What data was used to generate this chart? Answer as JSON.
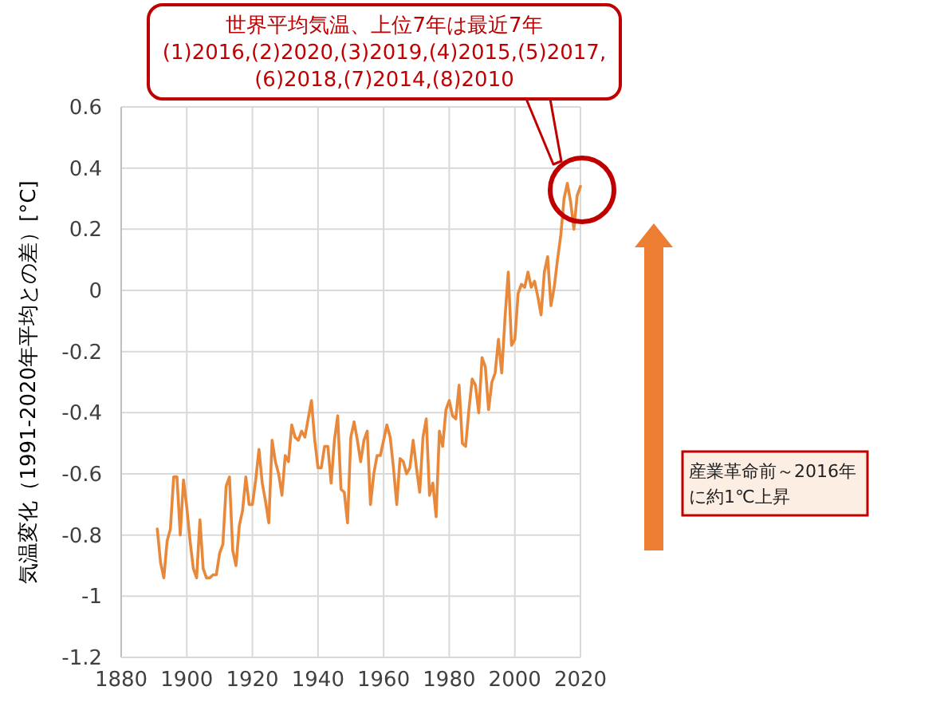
{
  "chart_data": {
    "type": "line",
    "ylabel": "気温変化（1991-2020年平均との差）[°C]",
    "x": [
      1891,
      1892,
      1893,
      1894,
      1895,
      1896,
      1897,
      1898,
      1899,
      1900,
      1901,
      1902,
      1903,
      1904,
      1905,
      1906,
      1907,
      1908,
      1909,
      1910,
      1911,
      1912,
      1913,
      1914,
      1915,
      1916,
      1917,
      1918,
      1919,
      1920,
      1921,
      1922,
      1923,
      1924,
      1925,
      1926,
      1927,
      1928,
      1929,
      1930,
      1931,
      1932,
      1933,
      1934,
      1935,
      1936,
      1937,
      1938,
      1939,
      1940,
      1941,
      1942,
      1943,
      1944,
      1945,
      1946,
      1947,
      1948,
      1949,
      1950,
      1951,
      1952,
      1953,
      1954,
      1955,
      1956,
      1957,
      1958,
      1959,
      1960,
      1961,
      1962,
      1963,
      1964,
      1965,
      1966,
      1967,
      1968,
      1969,
      1970,
      1971,
      1972,
      1973,
      1974,
      1975,
      1976,
      1977,
      1978,
      1979,
      1980,
      1981,
      1982,
      1983,
      1984,
      1985,
      1986,
      1987,
      1988,
      1989,
      1990,
      1991,
      1992,
      1993,
      1994,
      1995,
      1996,
      1997,
      1998,
      1999,
      2000,
      2001,
      2002,
      2003,
      2004,
      2005,
      2006,
      2007,
      2008,
      2009,
      2010,
      2011,
      2012,
      2013,
      2014,
      2015,
      2016,
      2017,
      2018,
      2019,
      2020
    ],
    "series": [
      {
        "color": "#e8883a",
        "values": [
          -0.78,
          -0.89,
          -0.94,
          -0.82,
          -0.78,
          -0.61,
          -0.61,
          -0.8,
          -0.62,
          -0.71,
          -0.82,
          -0.91,
          -0.94,
          -0.75,
          -0.91,
          -0.94,
          -0.94,
          -0.93,
          -0.93,
          -0.86,
          -0.83,
          -0.64,
          -0.61,
          -0.85,
          -0.9,
          -0.77,
          -0.72,
          -0.61,
          -0.7,
          -0.7,
          -0.62,
          -0.52,
          -0.63,
          -0.69,
          -0.76,
          -0.49,
          -0.56,
          -0.6,
          -0.67,
          -0.54,
          -0.56,
          -0.44,
          -0.48,
          -0.49,
          -0.46,
          -0.48,
          -0.42,
          -0.36,
          -0.49,
          -0.58,
          -0.58,
          -0.51,
          -0.51,
          -0.63,
          -0.49,
          -0.41,
          -0.65,
          -0.66,
          -0.76,
          -0.48,
          -0.43,
          -0.49,
          -0.56,
          -0.49,
          -0.46,
          -0.7,
          -0.6,
          -0.54,
          -0.54,
          -0.49,
          -0.44,
          -0.48,
          -0.58,
          -0.7,
          -0.55,
          -0.56,
          -0.6,
          -0.58,
          -0.49,
          -0.58,
          -0.66,
          -0.48,
          -0.42,
          -0.67,
          -0.63,
          -0.74,
          -0.46,
          -0.51,
          -0.39,
          -0.36,
          -0.41,
          -0.42,
          -0.31,
          -0.5,
          -0.51,
          -0.39,
          -0.29,
          -0.31,
          -0.4,
          -0.22,
          -0.25,
          -0.39,
          -0.3,
          -0.27,
          -0.16,
          -0.27,
          -0.09,
          0.06,
          -0.18,
          -0.16,
          -0.01,
          0.02,
          0.01,
          0.06,
          0.01,
          0.03,
          -0.02,
          -0.08,
          0.06,
          0.11,
          -0.05,
          0.01,
          0.1,
          0.18,
          0.3,
          0.35,
          0.29,
          0.2,
          0.31,
          0.34
        ]
      }
    ],
    "xlim": [
      1880,
      2020
    ],
    "xticks": [
      1880,
      1900,
      1920,
      1940,
      1960,
      1980,
      2000,
      2020
    ],
    "ylim": [
      -1.2,
      0.6
    ],
    "yticks": [
      {
        "value": -1.2,
        "label": "-1.2"
      },
      {
        "value": -1,
        "label": "-1"
      },
      {
        "value": -0.8,
        "label": "-0.8"
      },
      {
        "value": -0.6,
        "label": "-0.6"
      },
      {
        "value": -0.4,
        "label": "-0.4"
      },
      {
        "value": -0.2,
        "label": "-0.2"
      },
      0,
      {
        "value": 0.2,
        "label": "0.2"
      },
      {
        "value": 0.4,
        "label": "0.4"
      },
      {
        "value": 0.6,
        "label": "0.6"
      }
    ],
    "grid": true,
    "marker": "none",
    "line_style": "solid",
    "annotations": [
      "世界平均気温、上位7年は最近7年\n(1)2016,(2)2020,(3)2019,(4)2015,(5)2017,\n(6)2018,(7)2014,(8)2010",
      "産業革命前～2016年に約1℃上昇"
    ]
  }
}
